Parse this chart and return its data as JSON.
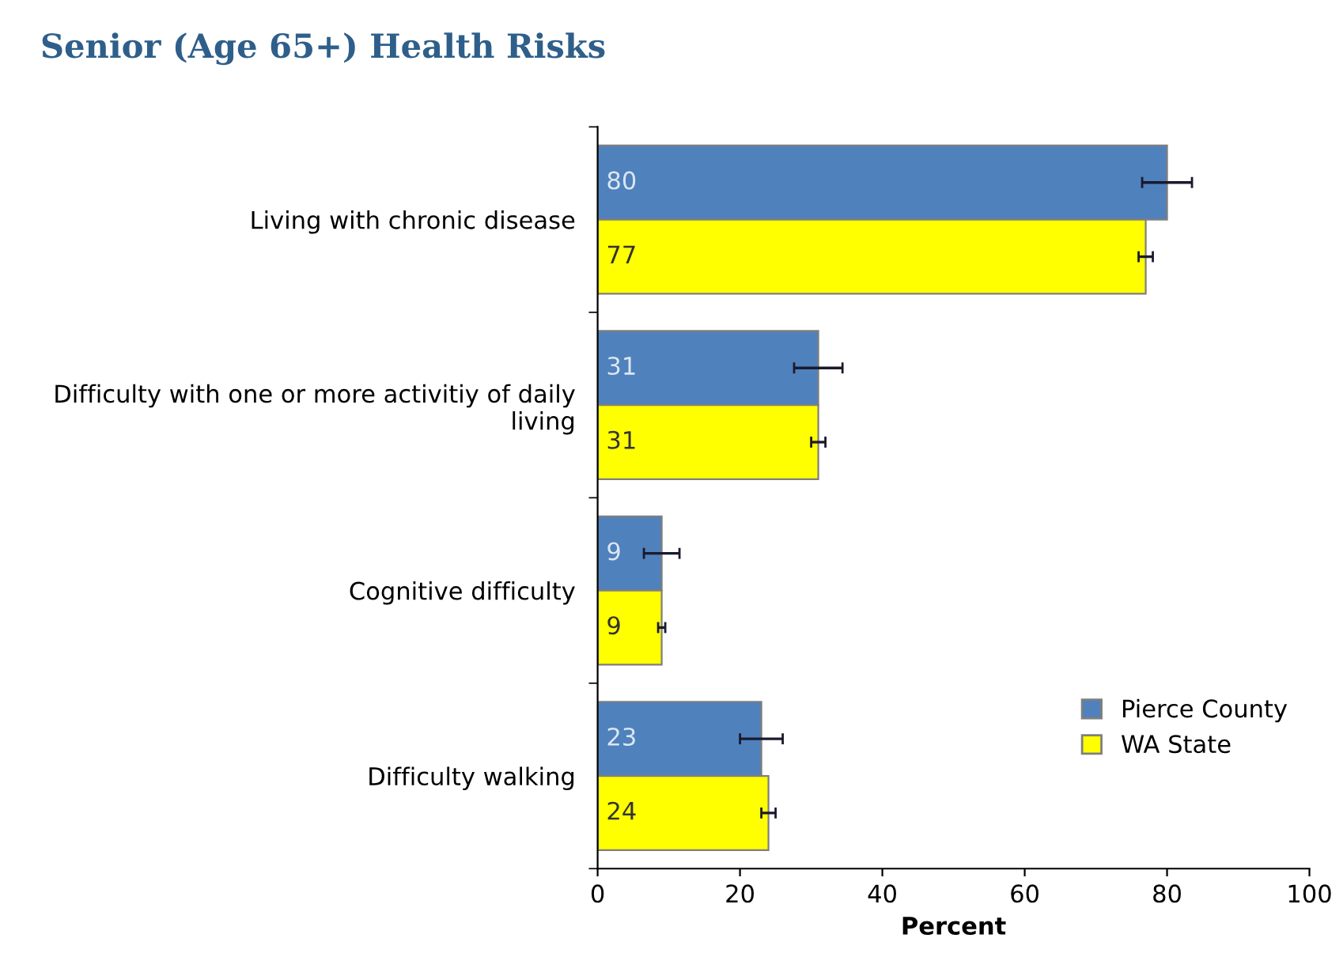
{
  "chart_data": {
    "type": "bar",
    "orientation": "horizontal",
    "title": "Senior (Age 65+) Health Risks",
    "xlabel": "Percent",
    "categories": [
      "Living with chronic disease",
      "Difficulty with one or more activitiy of daily living",
      "Cognitive difficulty",
      "Difficulty walking"
    ],
    "series": [
      {
        "name": "Pierce County",
        "color": "#4f81bd",
        "values": [
          80,
          31,
          9,
          23
        ],
        "errors": [
          3.5,
          3.4,
          2.5,
          3
        ]
      },
      {
        "name": "WA State",
        "color": "#ffff00",
        "values": [
          77,
          31,
          9,
          24
        ],
        "errors": [
          1,
          1,
          0.5,
          1
        ]
      }
    ],
    "xlim": [
      0,
      100
    ],
    "xticks": [
      0,
      20,
      40,
      60,
      80,
      100
    ],
    "data_labels": true,
    "legend": "bottom right",
    "grid": false
  }
}
